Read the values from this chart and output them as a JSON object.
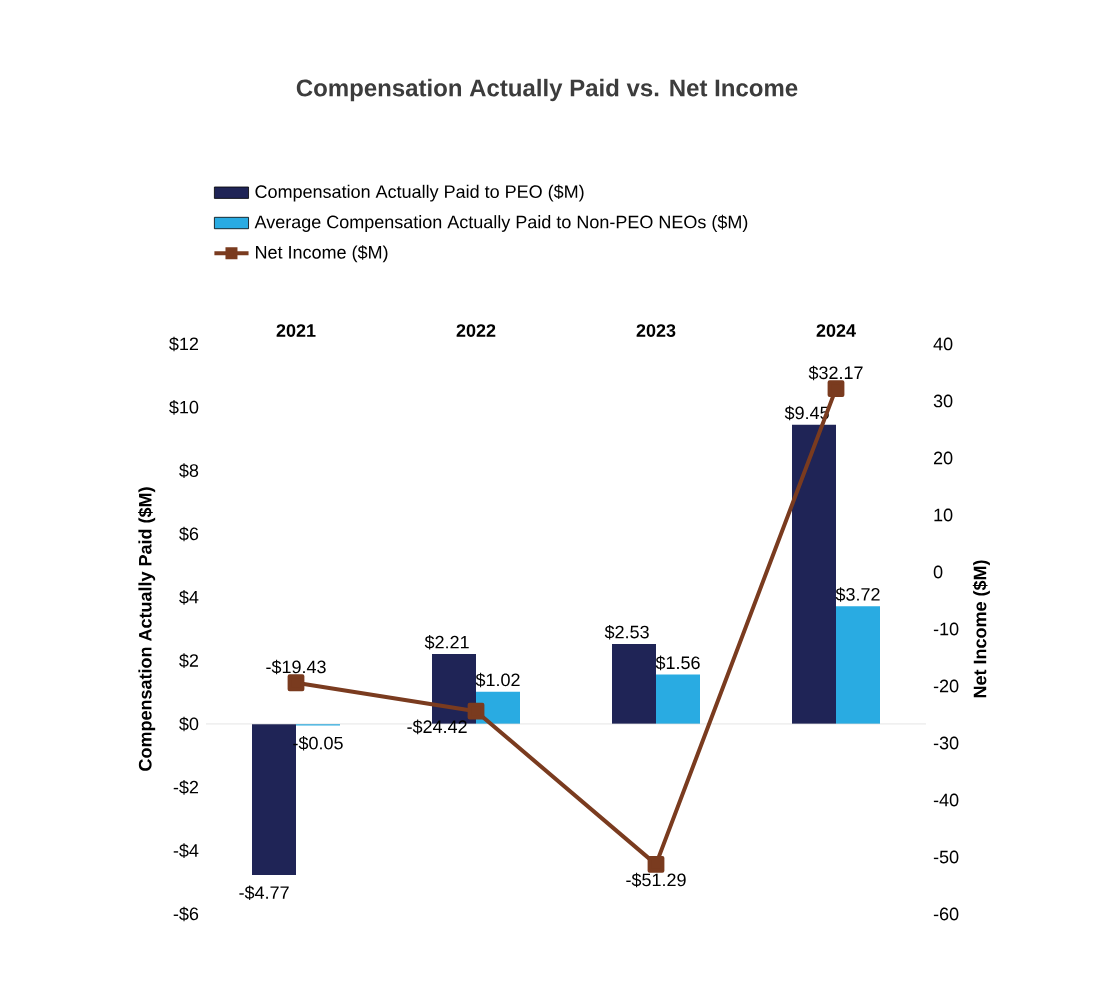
{
  "chart_data": {
    "type": "bar",
    "title": "Compensation Actually Paid vs. Net Income",
    "categories": [
      "2021",
      "2022",
      "2023",
      "2024"
    ],
    "series": [
      {
        "name": "Compensation Actually Paid to PEO ($M)",
        "color": "#1f2456",
        "values": [
          -4.77,
          2.21,
          2.53,
          9.45
        ],
        "value_labels": [
          "-$4.77",
          "$2.21",
          "$2.53",
          "$9.45"
        ]
      },
      {
        "name": "Average Compensation Actually Paid to Non-PEO NEOs ($M)",
        "color": "#29abe2",
        "values": [
          -0.05,
          1.02,
          1.56,
          3.72
        ],
        "value_labels": [
          "-$0.05",
          "$1.02",
          "$1.56",
          "$3.72"
        ]
      },
      {
        "name": "Net Income ($M)",
        "type": "line",
        "axis": "y2",
        "marker": "square",
        "color": "#7a3b1f",
        "values": [
          -19.43,
          -24.42,
          -51.29,
          32.17
        ],
        "value_labels": [
          "-$19.43",
          "-$24.42",
          "-$51.29",
          "$32.17"
        ]
      }
    ],
    "ylabel": "Compensation Actually Paid ($M)",
    "y2label": "Net Income ($M)",
    "ylim": [
      -6,
      12
    ],
    "yticks": [
      {
        "value": -6,
        "label": "-$6"
      },
      {
        "value": -4,
        "label": "-$4"
      },
      {
        "value": -2,
        "label": "-$2"
      },
      {
        "value": 0,
        "label": "$0"
      },
      {
        "value": 2,
        "label": "$2"
      },
      {
        "value": 4,
        "label": "$4"
      },
      {
        "value": 6,
        "label": "$6"
      },
      {
        "value": 8,
        "label": "$8"
      },
      {
        "value": 10,
        "label": "$10"
      },
      {
        "value": 12,
        "label": "$12"
      }
    ],
    "y2lim": [
      -60,
      40
    ],
    "y2ticks": [
      -60,
      -50,
      -40,
      -30,
      -20,
      -10,
      0,
      10,
      20,
      30,
      40
    ],
    "ref_lines": [
      {
        "axis": "y",
        "value": 0,
        "color": "#d9d9d9"
      }
    ],
    "legend": "top",
    "grid": false
  }
}
